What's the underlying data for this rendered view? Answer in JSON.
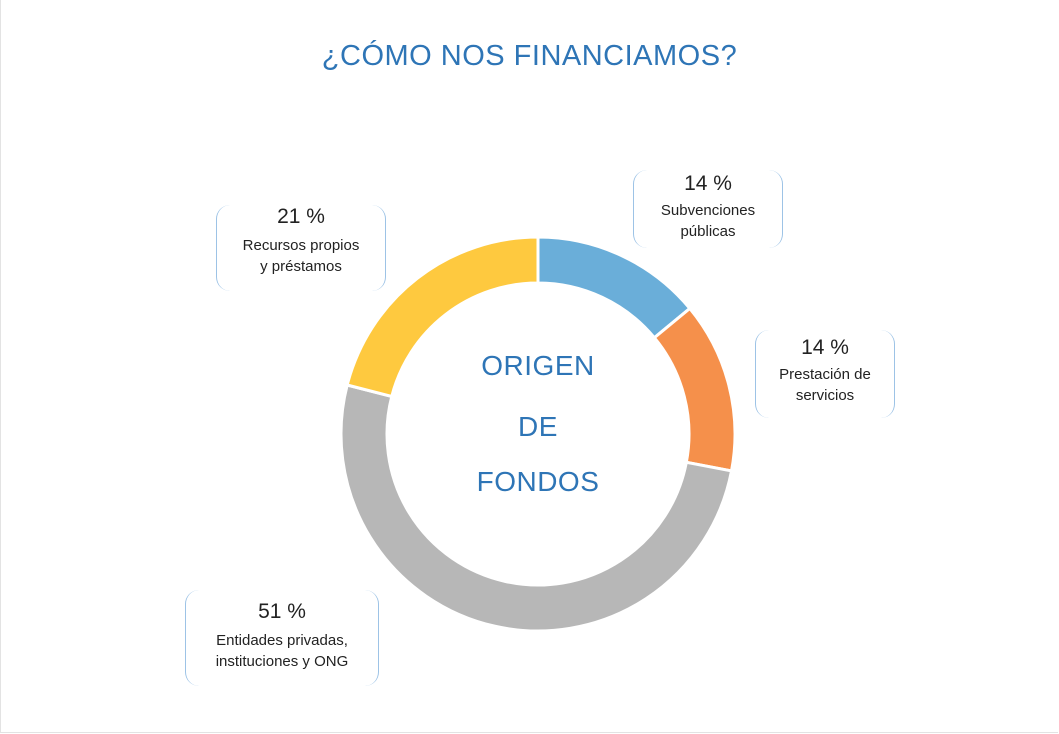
{
  "title": "¿CÓMO NOS FINANCIAMOS?",
  "center_label": [
    "ORIGEN",
    "DE",
    "FONDOS"
  ],
  "colors": {
    "title": "#2e75b6",
    "callout_border": "#9dc3e6",
    "slices": [
      "#6aaed9",
      "#f5904b",
      "#b7b7b7",
      "#fec93f"
    ]
  },
  "chart_data": {
    "type": "pie",
    "style": "donut",
    "categories": [
      "Subvenciones públicas",
      "Prestación de servicios",
      "Entidades privadas, instituciones y ONG",
      "Recursos propios y préstamos"
    ],
    "values": [
      14,
      14,
      51,
      21
    ],
    "data_labels": [
      "14 %",
      "14 %",
      "51 %",
      "21 %"
    ],
    "callout_text": [
      "Subvenciones\npúblicas",
      "Prestación de\nservicios",
      "Entidades privadas,\ninstituciones y ONG",
      "Recursos propios\ny préstamos"
    ]
  }
}
